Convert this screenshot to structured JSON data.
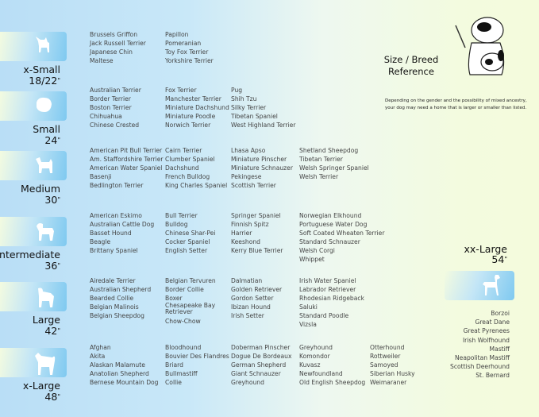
{
  "header": {
    "title_line1": "Size / Breed",
    "title_line2": "Reference",
    "note_line1": "Depending on the gender and the possibility of mixed ancestry,",
    "note_line2": "your dog may need  a home that is larger or smaller than listed."
  },
  "colors": {
    "box_blue": "#7fc9f0",
    "background_left": "#b9def6",
    "background_right": "#f4fbdc"
  },
  "sizes": [
    {
      "name": "x-Small",
      "inches": "18/22",
      "icon": "papillon-silhouette-icon",
      "columns": [
        [
          "Brussels Griffon",
          "Jack Russell Terrier",
          "Japanese Chin",
          "Maltese"
        ],
        [
          "Papillon",
          "Pomeranian",
          "Toy Fox Terrier",
          "Yorkshire Terrier"
        ]
      ]
    },
    {
      "name": "Small",
      "inches": "24",
      "icon": "maltese-silhouette-icon",
      "columns": [
        [
          "Australian Terrier",
          "Border Terrier",
          "Boston Terrier",
          "Chihuahua",
          "Chinese Crested"
        ],
        [
          "Fox Terrier",
          "Manchester Terrier",
          "Miniature Dachshund",
          "Miniature Poodle",
          "Norwich Terrier"
        ],
        [
          "Pug",
          "Shih Tzu",
          "Silky Terrier",
          "Tibetan Spaniel",
          "West Highland Terrier"
        ]
      ]
    },
    {
      "name": "Medium",
      "inches": "30",
      "icon": "westie-silhouette-icon",
      "columns": [
        [
          "American Pit Bull Terrier",
          "Am. Staffordshire Terrier",
          "American Water Spaniel",
          "Basenji",
          "Bedlington Terrier"
        ],
        [
          "Cairn Terrier",
          "Clumber Spaniel",
          "Dachshund",
          "French Bulldog",
          "King Charles Spaniel"
        ],
        [
          "Lhasa Apso",
          "Miniature Pinscher",
          "Miniature Schnauzer",
          "Pekingese",
          "Scottish Terrier"
        ],
        [
          "Shetland Sheepdog",
          "Tibetan Terrier",
          "Welsh Springer Spaniel",
          "Welsh Terrier"
        ]
      ]
    },
    {
      "name": "Intermediate",
      "inches": "36",
      "icon": "spaniel-silhouette-icon",
      "columns": [
        [
          "American Eskimo",
          "Australian Cattle Dog",
          "Basset Hound",
          "Beagle",
          "Brittany Spaniel"
        ],
        [
          "Bull Terrier",
          "Bulldog",
          "Chinese Shar-Pei",
          "Cocker Spaniel",
          "English Setter"
        ],
        [
          "Springer Spaniel",
          "Finnish Spitz",
          "Harrier",
          "Keeshond",
          "Kerry Blue Terrier"
        ],
        [
          "Norwegian Elkhound",
          "Portuguese Water Dog",
          "Soft Coated Wheaten Terrier",
          "Standard Schnauzer",
          "Welsh Corgi",
          "Whippet"
        ]
      ]
    },
    {
      "name": "Large",
      "inches": "42",
      "icon": "retriever-silhouette-icon",
      "columns": [
        [
          "Airedale Terrier",
          "Australian Shepherd",
          "Bearded Collie",
          "Belgian Malinois",
          "Belgian Sheepdog"
        ],
        [
          "Belgian Tervuren",
          "Border Collie",
          "Boxer",
          "Chesapeake Bay Retriever",
          "Chow-Chow"
        ],
        [
          "Dalmatian",
          "Golden Retriever",
          "Gordon Setter",
          "Ibizan Hound",
          "Irish Setter"
        ],
        [
          "Irish Water Spaniel",
          "Labrador Retriever",
          "Rhodesian Ridgeback",
          "Saluki",
          "Standard Poodle",
          "Vizsla"
        ]
      ]
    },
    {
      "name": "x-Large",
      "inches": "48",
      "icon": "akita-silhouette-icon",
      "columns": [
        [
          "Afghan",
          "Akita",
          "Alaskan Malamute",
          "Anatolian Shepherd",
          "Bernese Mountain Dog"
        ],
        [
          "Bloodhound",
          "Bouvier Des Flandres",
          "Briard",
          "Bullmastiff",
          "Collie"
        ],
        [
          "Doberman Pinscher",
          "Dogue De Bordeaux",
          "German Shepherd",
          "Giant Schnauzer",
          "Greyhound"
        ],
        [
          "Greyhound",
          "Komondor",
          "Kuvasz",
          "Newfoundland",
          "Old English Sheepdog"
        ],
        [
          "Otterhound",
          "Rottweiler",
          "Samoyed",
          "Siberian Husky",
          "Weimaraner"
        ]
      ]
    }
  ],
  "xx_large": {
    "name": "xx-Large",
    "inches": "54",
    "icon": "great-dane-silhouette-icon",
    "breeds": [
      "Borzoi",
      "Great Dane",
      "Great Pyrenees",
      "Irish Wolfhound",
      "Mastiff",
      "Neapolitan Mastiff",
      "Scottish Deerhound",
      "St. Bernard"
    ]
  },
  "inch_mark": "\""
}
